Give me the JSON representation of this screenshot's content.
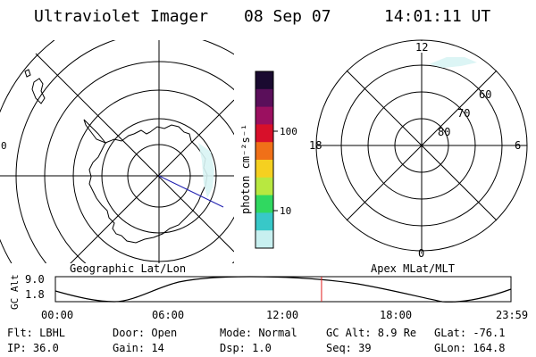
{
  "header": {
    "title": "Ultraviolet Imager",
    "date": "08 Sep 07",
    "time": "14:01:11 UT"
  },
  "left_panel": {
    "caption": "Geographic Lat/Lon",
    "edge_label": "0"
  },
  "colorbar": {
    "unit_label": "photon cm⁻²s⁻¹",
    "tick_labels": [
      "100",
      "10"
    ],
    "colors": [
      "#1a0a30",
      "#5a0f5a",
      "#9b1060",
      "#d8102a",
      "#f07018",
      "#f5d020",
      "#b8e840",
      "#30d860",
      "#38c8c8",
      "#c8f0f0"
    ]
  },
  "right_panel": {
    "caption": "Apex MLat/MLT",
    "mlt_labels": {
      "top": "12",
      "left": "18",
      "right": "6",
      "bottom": "0"
    },
    "mlat_labels": [
      "60",
      "70",
      "80"
    ]
  },
  "altitude_plot": {
    "ylabel": "GC Alt",
    "y_ticks": [
      "9.0",
      "1.8"
    ],
    "x_ticks": [
      "00:00",
      "06:00",
      "12:00",
      "18:00",
      "23:59"
    ],
    "current_time_hours": 14.02
  },
  "info": {
    "filter": "Flt: LBHL",
    "ip": "IP: 36.0",
    "door": "Door: Open",
    "gain": "Gain: 14",
    "mode": "Mode: Normal",
    "dsp": "Dsp:    1.0",
    "gc_alt": "GC Alt: 8.9 Re",
    "seq": "Seq: 39",
    "glat": "GLat: -76.1",
    "glon": "GLon: 164.8"
  }
}
